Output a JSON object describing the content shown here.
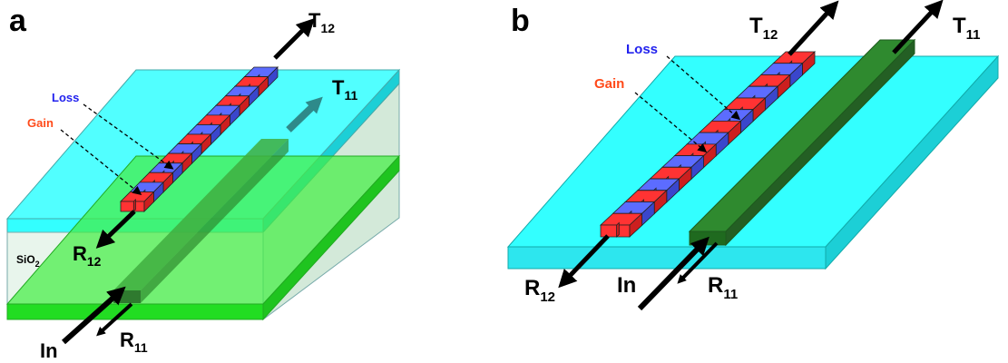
{
  "panels": {
    "a": {
      "letter": "a",
      "loss": "Loss",
      "gain": "Gain",
      "substrate": "SiO",
      "substrate_sub": "2",
      "t12": {
        "main": "T",
        "sub": "12"
      },
      "t11": {
        "main": "T",
        "sub": "11"
      },
      "r12": {
        "main": "R",
        "sub": "12"
      },
      "r11": {
        "main": "R",
        "sub": "11"
      },
      "input": "In",
      "segments": 14
    },
    "b": {
      "letter": "b",
      "loss": "Loss",
      "gain": "Gain",
      "t12": {
        "main": "T",
        "sub": "12"
      },
      "t11": {
        "main": "T",
        "sub": "11"
      },
      "r12": {
        "main": "R",
        "sub": "12"
      },
      "r11": {
        "main": "R",
        "sub": "11"
      },
      "input": "In",
      "segments": 15
    }
  },
  "colors": {
    "cladding_top": "#33ffff",
    "cladding_side": "#1ccfd6",
    "glass_top": "#8ff0f2",
    "glass_side": "#d3e9d9",
    "substrate_green": "#44ee44",
    "waveguide_dark": "#2f8a2f",
    "waveguide_light": "#4db84d",
    "gain_red": "#ff3333",
    "loss_blue": "#5c6cff",
    "loss_text": "#2222ee",
    "gain_text": "#ff4a1a",
    "arrow": "#000000"
  }
}
